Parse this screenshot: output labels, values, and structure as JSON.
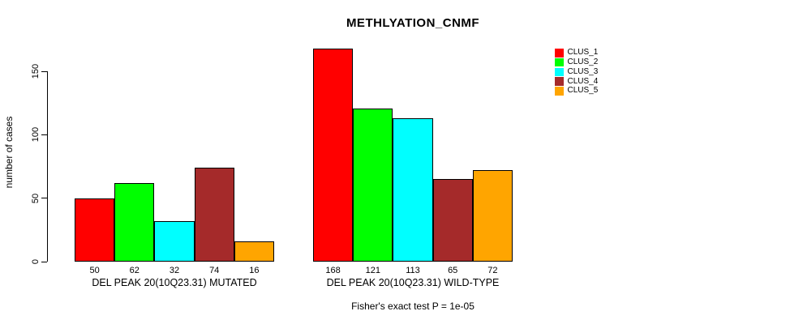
{
  "chart_data": {
    "type": "bar",
    "title": "METHLYATION_CNMF",
    "xlabel": "",
    "ylabel": "number of cases",
    "ylim": [
      0,
      168
    ],
    "yticks": [
      0,
      50,
      100,
      150
    ],
    "grid": false,
    "legend_position": "right",
    "bar_value_labels": true,
    "categories": [
      "DEL PEAK 20(10Q23.31) MUTATED",
      "DEL PEAK 20(10Q23.31) WILD-TYPE"
    ],
    "series": [
      {
        "name": "CLUS_1",
        "color": "#ff0000",
        "values": [
          50,
          168
        ]
      },
      {
        "name": "CLUS_2",
        "color": "#00ff00",
        "values": [
          62,
          121
        ]
      },
      {
        "name": "CLUS_3",
        "color": "#00ffff",
        "values": [
          32,
          113
        ]
      },
      {
        "name": "CLUS_4",
        "color": "#a52a2a",
        "values": [
          74,
          65
        ]
      },
      {
        "name": "CLUS_5",
        "color": "#ffa500",
        "values": [
          16,
          72
        ]
      }
    ],
    "annotation": "Fisher's exact test P = 1e-05"
  },
  "colors": {
    "axis": "#000000",
    "text": "#000000",
    "background": "#ffffff"
  }
}
